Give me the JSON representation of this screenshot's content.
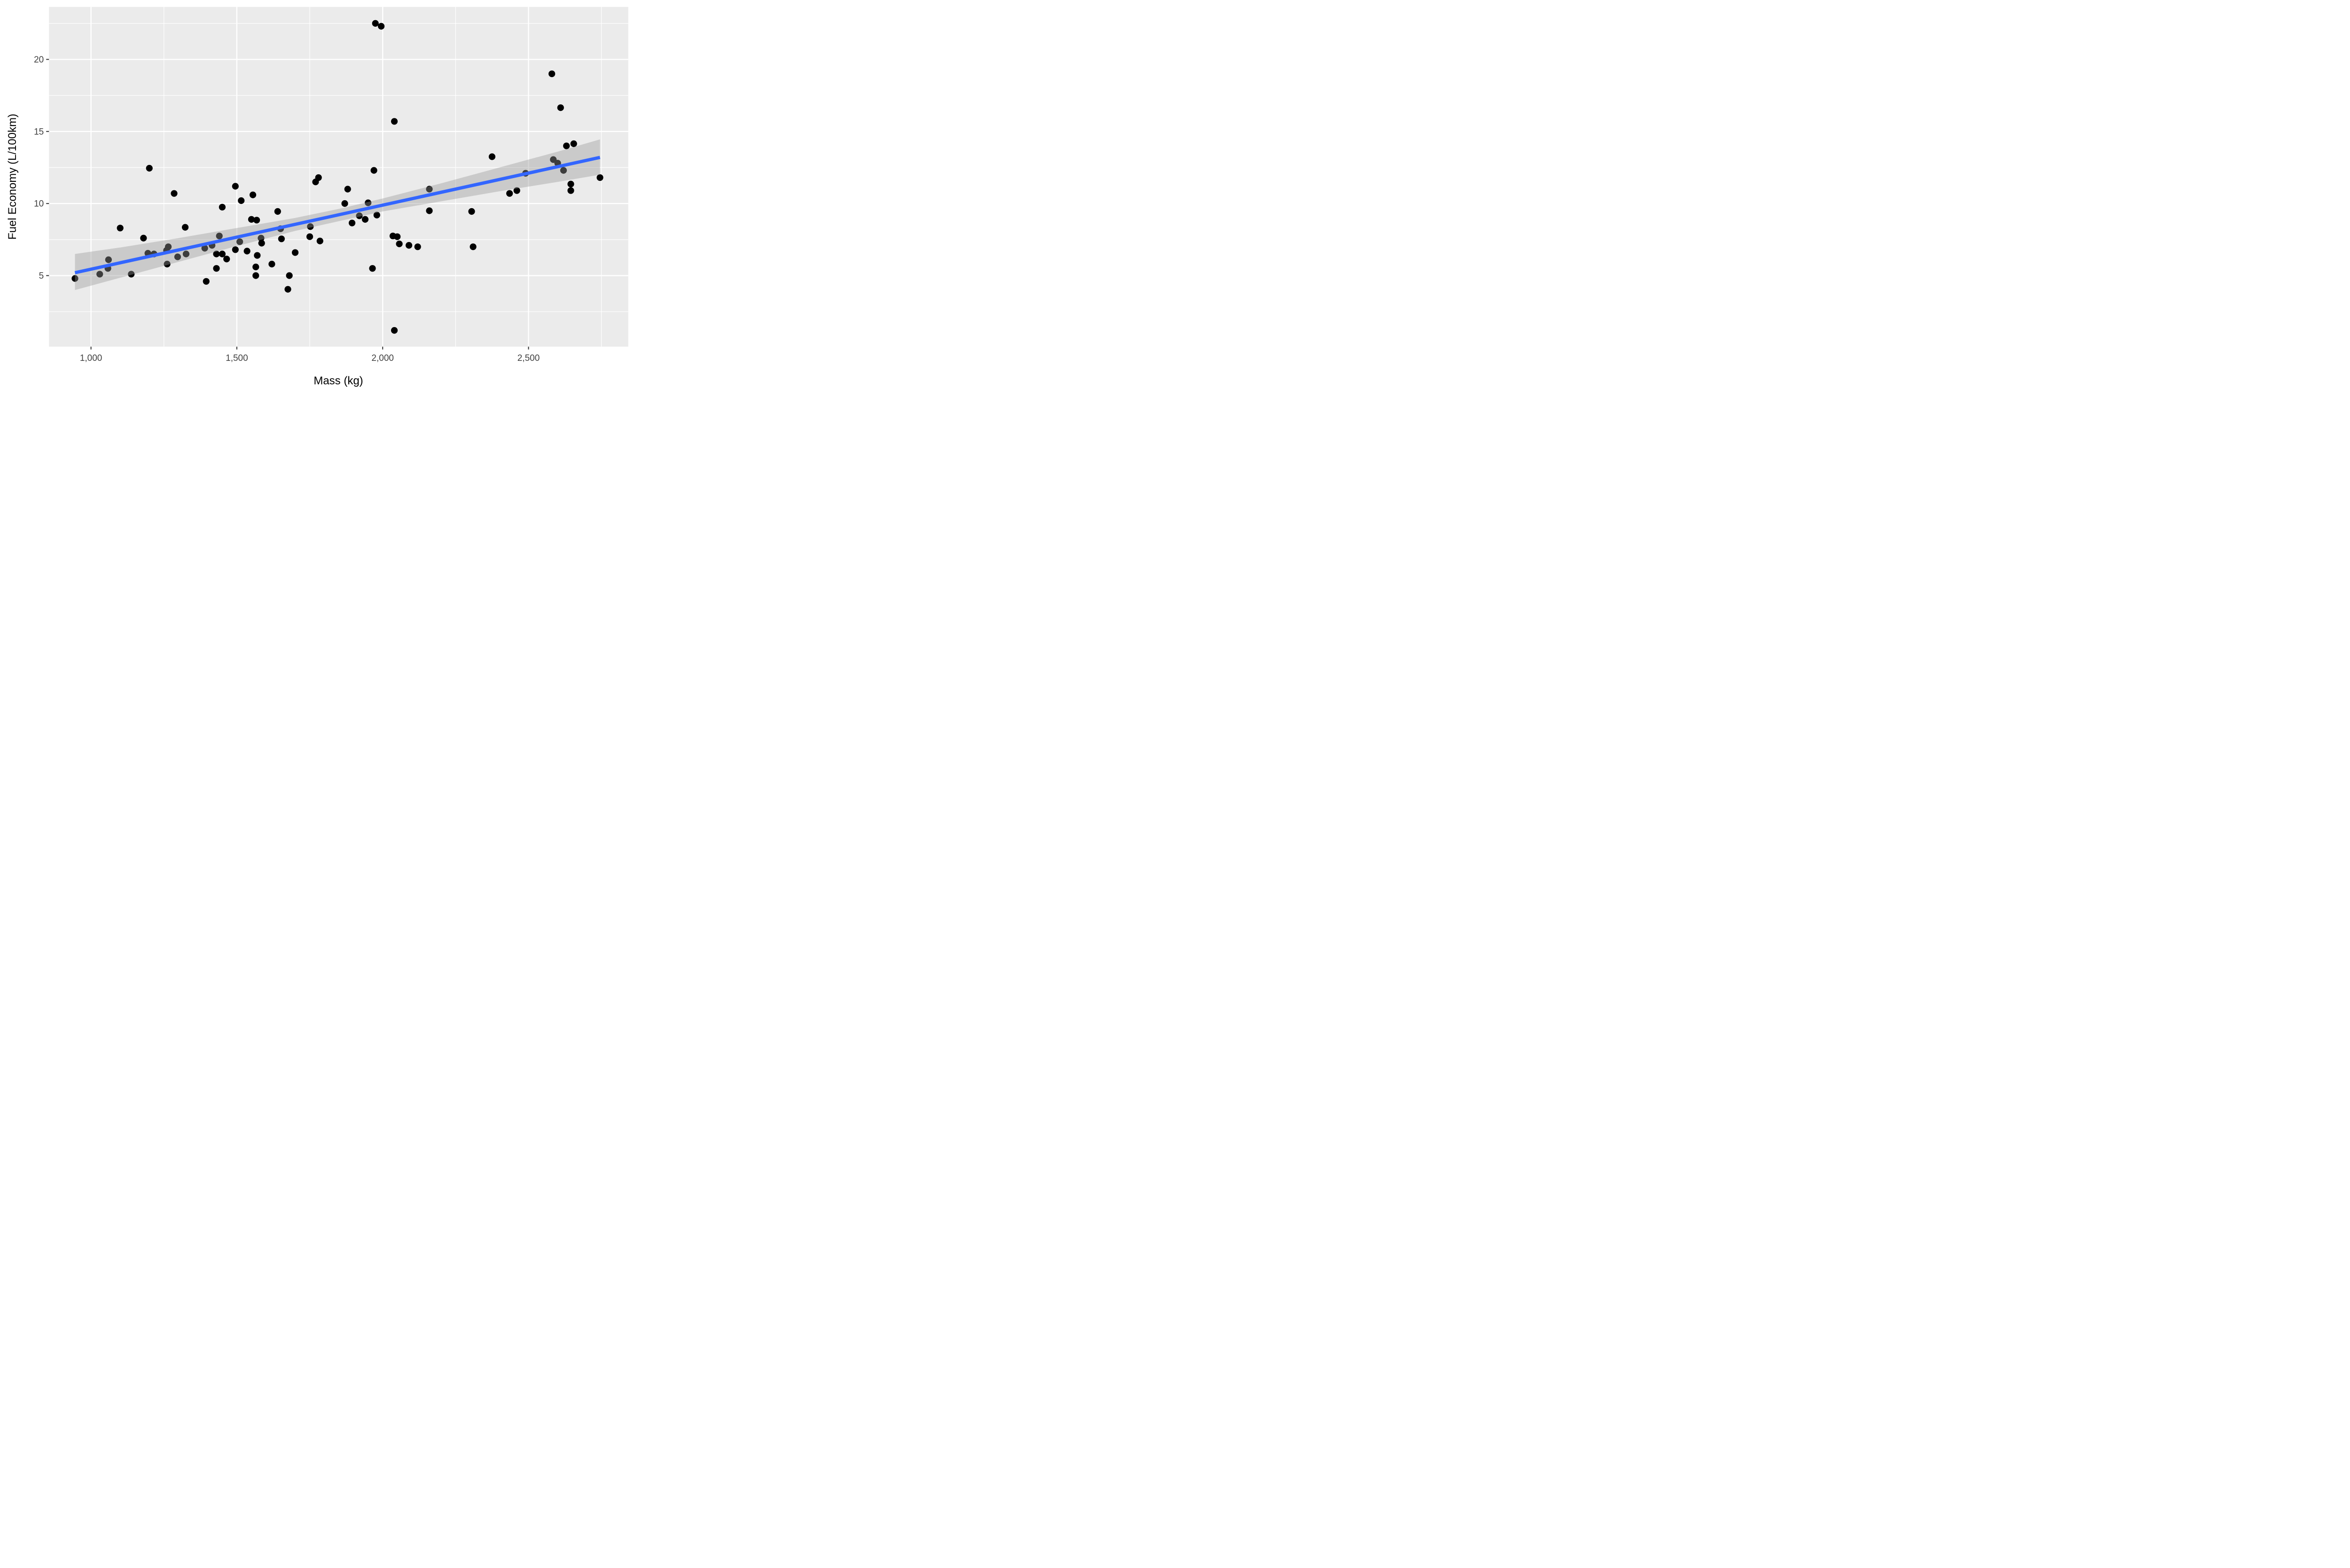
{
  "chart_data": {
    "type": "scatter",
    "title": "",
    "xlabel": "Mass (kg)",
    "ylabel": "Fuel Economy (L/100km)",
    "xlim": [
      856,
      2842
    ],
    "ylim": [
      0.07,
      23.64
    ],
    "grid": "white major and minor gridlines on gray panel",
    "legend_position": "none",
    "x_major_ticks": [
      {
        "value": 1000,
        "label": "1,000"
      },
      {
        "value": 1500,
        "label": "1,500"
      },
      {
        "value": 2000,
        "label": "2,000"
      },
      {
        "value": 2500,
        "label": "2,500"
      }
    ],
    "y_major_ticks": [
      {
        "value": 5,
        "label": "5"
      },
      {
        "value": 10,
        "label": "10"
      },
      {
        "value": 15,
        "label": "15"
      },
      {
        "value": 20,
        "label": "20"
      }
    ],
    "x_minor_gridlines": [
      1250,
      1750,
      2250,
      2750
    ],
    "y_minor_gridlines": [
      2.5,
      7.5,
      12.5,
      17.5,
      22.5
    ],
    "points": [
      [
        945,
        4.8
      ],
      [
        1030,
        5.1
      ],
      [
        1058,
        5.5
      ],
      [
        1060,
        6.1
      ],
      [
        1100,
        8.3
      ],
      [
        1138,
        5.1
      ],
      [
        1180,
        7.6
      ],
      [
        1195,
        6.55
      ],
      [
        1200,
        12.45
      ],
      [
        1216,
        6.5
      ],
      [
        1259,
        6.75
      ],
      [
        1261,
        5.8
      ],
      [
        1265,
        7.0
      ],
      [
        1285,
        10.7
      ],
      [
        1297,
        6.3
      ],
      [
        1323,
        8.35
      ],
      [
        1326,
        6.5
      ],
      [
        1390,
        6.9
      ],
      [
        1395,
        4.6
      ],
      [
        1415,
        7.1
      ],
      [
        1430,
        6.5
      ],
      [
        1430,
        5.5
      ],
      [
        1440,
        7.75
      ],
      [
        1450,
        9.75
      ],
      [
        1450,
        6.5
      ],
      [
        1465,
        6.15
      ],
      [
        1495,
        11.2
      ],
      [
        1495,
        6.8
      ],
      [
        1510,
        7.35
      ],
      [
        1515,
        10.2
      ],
      [
        1535,
        6.7
      ],
      [
        1550,
        8.9
      ],
      [
        1555,
        10.6
      ],
      [
        1565,
        5.6
      ],
      [
        1565,
        5.0
      ],
      [
        1568,
        8.85
      ],
      [
        1570,
        6.4
      ],
      [
        1583,
        7.6
      ],
      [
        1585,
        7.25
      ],
      [
        1620,
        5.8
      ],
      [
        1640,
        9.45
      ],
      [
        1650,
        8.25
      ],
      [
        1653,
        7.55
      ],
      [
        1675,
        4.05
      ],
      [
        1680,
        5.0
      ],
      [
        1700,
        6.6
      ],
      [
        1750,
        7.7
      ],
      [
        1752,
        8.4
      ],
      [
        1770,
        11.5
      ],
      [
        1780,
        11.8
      ],
      [
        1785,
        7.4
      ],
      [
        1870,
        10.0
      ],
      [
        1880,
        11.0
      ],
      [
        1895,
        8.65
      ],
      [
        1920,
        9.15
      ],
      [
        1940,
        8.9
      ],
      [
        1950,
        10.05
      ],
      [
        1965,
        5.5
      ],
      [
        1970,
        12.3
      ],
      [
        1975,
        22.5
      ],
      [
        1980,
        9.2
      ],
      [
        1995,
        22.3
      ],
      [
        2035,
        7.75
      ],
      [
        2040,
        1.2
      ],
      [
        2040,
        15.7
      ],
      [
        2050,
        7.7
      ],
      [
        2057,
        7.2
      ],
      [
        2090,
        7.1
      ],
      [
        2120,
        7.0
      ],
      [
        2160,
        11.0
      ],
      [
        2160,
        9.5
      ],
      [
        2305,
        9.45
      ],
      [
        2310,
        7.0
      ],
      [
        2375,
        13.25
      ],
      [
        2435,
        10.7
      ],
      [
        2460,
        10.9
      ],
      [
        2490,
        12.1
      ],
      [
        2580,
        19.0
      ],
      [
        2585,
        13.05
      ],
      [
        2600,
        12.8
      ],
      [
        2610,
        16.65
      ],
      [
        2620,
        12.3
      ],
      [
        2630,
        14.0
      ],
      [
        2645,
        11.35
      ],
      [
        2645,
        10.9
      ],
      [
        2655,
        14.15
      ],
      [
        2745,
        11.8
      ]
    ],
    "trend_line": {
      "type": "linear",
      "x1": 945,
      "y1": 5.2,
      "x2": 2745,
      "y2": 13.2
    },
    "confidence_band": [
      {
        "x": 945,
        "lo": 4.0,
        "hi": 6.5
      },
      {
        "x": 1100,
        "lo": 4.85,
        "hi": 6.95
      },
      {
        "x": 1300,
        "lo": 5.95,
        "hi": 7.6
      },
      {
        "x": 1500,
        "lo": 7.05,
        "hi": 8.3
      },
      {
        "x": 1700,
        "lo": 8.1,
        "hi": 9.0
      },
      {
        "x": 1855,
        "lo": 8.8,
        "hi": 9.65
      },
      {
        "x": 2000,
        "lo": 9.45,
        "hi": 10.35
      },
      {
        "x": 2200,
        "lo": 10.15,
        "hi": 11.4
      },
      {
        "x": 2400,
        "lo": 10.85,
        "hi": 12.5
      },
      {
        "x": 2600,
        "lo": 11.5,
        "hi": 13.6
      },
      {
        "x": 2745,
        "lo": 12.0,
        "hi": 14.45
      }
    ],
    "colors": {
      "panel_background": "#EBEBEB",
      "gridline": "#FFFFFF",
      "point": "#000000",
      "trend_line": "#3366FF",
      "confidence_band": "rgba(153,153,153,0.4)",
      "tick_label": "#404040",
      "axis_title": "#000000",
      "tick_mark": "#333333",
      "outer_background": "#FFFFFF"
    }
  }
}
